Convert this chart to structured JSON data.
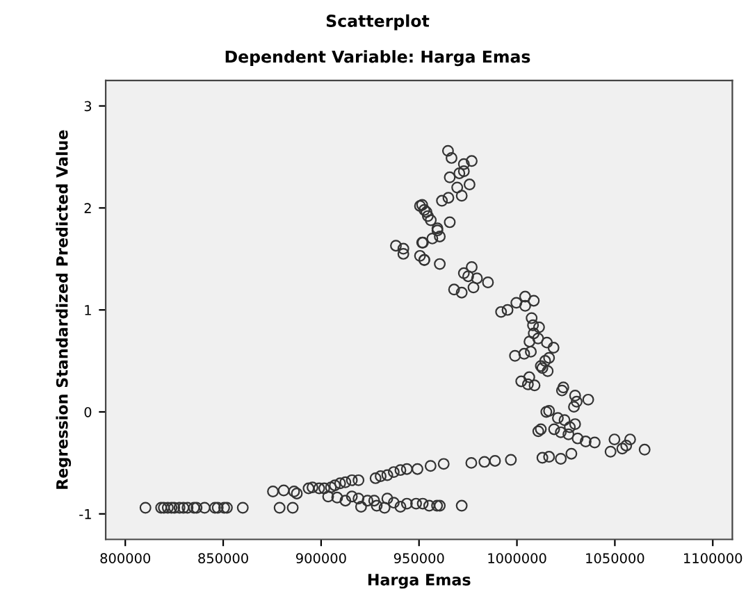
{
  "chart_data": {
    "type": "scatter",
    "title": "Scatterplot",
    "subtitle": "Dependent Variable: Harga Emas",
    "xlabel": "Harga Emas",
    "ylabel": "Regression Standardized Predicted Value",
    "marker": "circle",
    "grid": false,
    "legend": false,
    "xlim": [
      790000,
      1110000
    ],
    "xticks": [
      800000,
      850000,
      900000,
      950000,
      1000000,
      1050000,
      1100000
    ],
    "ylim": [
      -1.25,
      3.25
    ],
    "yticks": [
      -1,
      0,
      1,
      2,
      3
    ],
    "series": [
      {
        "color": "#333333",
        "x": [
          810300,
          818300,
          819700,
          821700,
          823600,
          825000,
          827700,
          829700,
          831800,
          835100,
          836400,
          840500,
          845800,
          847200,
          850500,
          851900,
          860000,
          878800,
          885500,
          875400,
          880900,
          886200,
          887600,
          893600,
          895600,
          899000,
          901600,
          905000,
          907000,
          909700,
          912400,
          915700,
          919100,
          927800,
          930400,
          933800,
          937100,
          940500,
          943800,
          949200,
          955900,
          962600,
          903600,
          908200,
          912400,
          915700,
          919100,
          920400,
          923700,
          927100,
          928400,
          933800,
          932400,
          937100,
          940500,
          943800,
          948500,
          951900,
          955200,
          959200,
          960600,
          971800,
          976700,
          983400,
          988800,
          996900,
          1013000,
          1016400,
          1022400,
          1027800,
          1047800,
          1049800,
          1053800,
          1055800,
          1057800,
          1065200,
          1039700,
          1035100,
          1031000,
          1026300,
          1029700,
          1027000,
          1022400,
          1019000,
          1010900,
          1012200,
          1024300,
          1020900,
          1016400,
          1015000,
          1029100,
          1030500,
          1029700,
          1036400,
          1023000,
          1023700,
          1002200,
          1006300,
          1009000,
          1005600,
          999000,
          1003700,
          1007100,
          1013000,
          1014400,
          1016400,
          1015700,
          1012200,
          964800,
          966600,
          972900,
          976900,
          972900,
          970600,
          965700,
          969500,
          975800,
          971800,
          965000,
          961700,
          951600,
          953800,
          956000,
          965700,
          959400,
          960600,
          956800,
          951600,
          952700,
          960600,
          976900,
          972900,
          975100,
          979600,
          985200,
          977800,
          967900,
          971800,
          991900,
          995200,
          999700,
          1004200,
          1008600,
          1004200,
          1007500,
          1008200,
          1011300,
          1008600,
          1006400,
          1010800,
          1015300,
          1018700,
          950500,
          952700,
          954500,
          938200,
          942000,
          942000,
          952000,
          950500,
          952700,
          959400
        ],
        "values": [
          -0.94,
          -0.94,
          -0.94,
          -0.94,
          -0.94,
          -0.94,
          -0.94,
          -0.94,
          -0.94,
          -0.94,
          -0.94,
          -0.94,
          -0.94,
          -0.94,
          -0.94,
          -0.94,
          -0.94,
          -0.94,
          -0.94,
          -0.78,
          -0.77,
          -0.78,
          -0.8,
          -0.75,
          -0.74,
          -0.75,
          -0.75,
          -0.74,
          -0.72,
          -0.7,
          -0.69,
          -0.67,
          -0.67,
          -0.65,
          -0.63,
          -0.62,
          -0.59,
          -0.57,
          -0.56,
          -0.56,
          -0.53,
          -0.51,
          -0.83,
          -0.84,
          -0.87,
          -0.83,
          -0.85,
          -0.93,
          -0.87,
          -0.87,
          -0.92,
          -0.85,
          -0.94,
          -0.89,
          -0.93,
          -0.9,
          -0.9,
          -0.9,
          -0.92,
          -0.92,
          -0.92,
          -0.92,
          -0.5,
          -0.49,
          -0.48,
          -0.47,
          -0.45,
          -0.44,
          -0.46,
          -0.41,
          -0.39,
          -0.27,
          -0.36,
          -0.33,
          -0.27,
          -0.37,
          -0.3,
          -0.29,
          -0.26,
          -0.22,
          -0.12,
          -0.15,
          -0.2,
          -0.17,
          -0.19,
          -0.17,
          -0.08,
          -0.06,
          0.01,
          0.0,
          0.05,
          0.1,
          0.16,
          0.12,
          0.21,
          0.24,
          0.3,
          0.34,
          0.26,
          0.27,
          0.55,
          0.57,
          0.59,
          0.43,
          0.5,
          0.53,
          0.4,
          0.45,
          2.56,
          2.49,
          2.43,
          2.46,
          2.36,
          2.34,
          2.3,
          2.2,
          2.23,
          2.12,
          2.1,
          2.07,
          2.03,
          1.96,
          1.88,
          1.86,
          1.78,
          1.72,
          1.7,
          1.66,
          1.49,
          1.45,
          1.42,
          1.36,
          1.33,
          1.31,
          1.27,
          1.22,
          1.2,
          1.17,
          0.98,
          1.0,
          1.07,
          1.13,
          1.09,
          1.04,
          0.92,
          0.85,
          0.83,
          0.77,
          0.69,
          0.72,
          0.68,
          0.63,
          2.02,
          1.98,
          1.92,
          1.63,
          1.6,
          1.55,
          1.66,
          1.53,
          1.49,
          1.8
        ]
      }
    ]
  }
}
